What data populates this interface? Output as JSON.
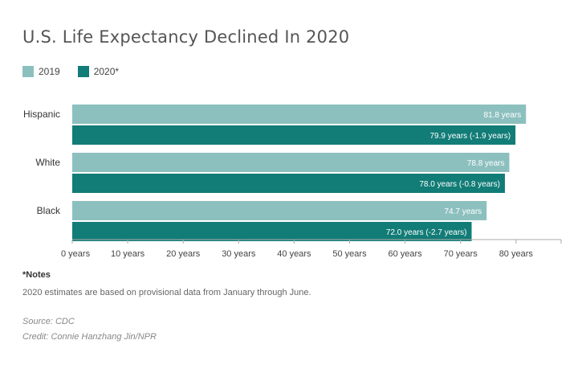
{
  "chart_data": {
    "type": "bar",
    "orientation": "horizontal",
    "title": "U.S. Life Expectancy Declined In 2020",
    "categories": [
      "Hispanic",
      "White",
      "Black"
    ],
    "series": [
      {
        "name": "2019",
        "color": "#8cc0bf",
        "values": [
          81.8,
          78.8,
          74.7
        ],
        "labels": [
          "81.8 years",
          "78.8 years",
          "74.7 years"
        ]
      },
      {
        "name": "2020*",
        "color": "#127c77",
        "values": [
          79.9,
          78.0,
          72.0
        ],
        "labels": [
          "79.9 years (-1.9 years)",
          "78.0 years (-0.8 years)",
          "72.0 years (-2.7 years)"
        ]
      }
    ],
    "xlim": [
      0,
      85
    ],
    "xticks": [
      0,
      10,
      20,
      30,
      40,
      50,
      60,
      70,
      80
    ],
    "xtick_labels": [
      "0 years",
      "10 years",
      "20 years",
      "30 years",
      "40 years",
      "50 years",
      "60 years",
      "70 years",
      "80 years"
    ],
    "legend_position": "top-left"
  },
  "notes": {
    "heading": "*Notes",
    "text": "2020 estimates are based on provisional data from January through June."
  },
  "source": "Source: CDC",
  "credit": "Credit: Connie Hanzhang Jin/NPR"
}
